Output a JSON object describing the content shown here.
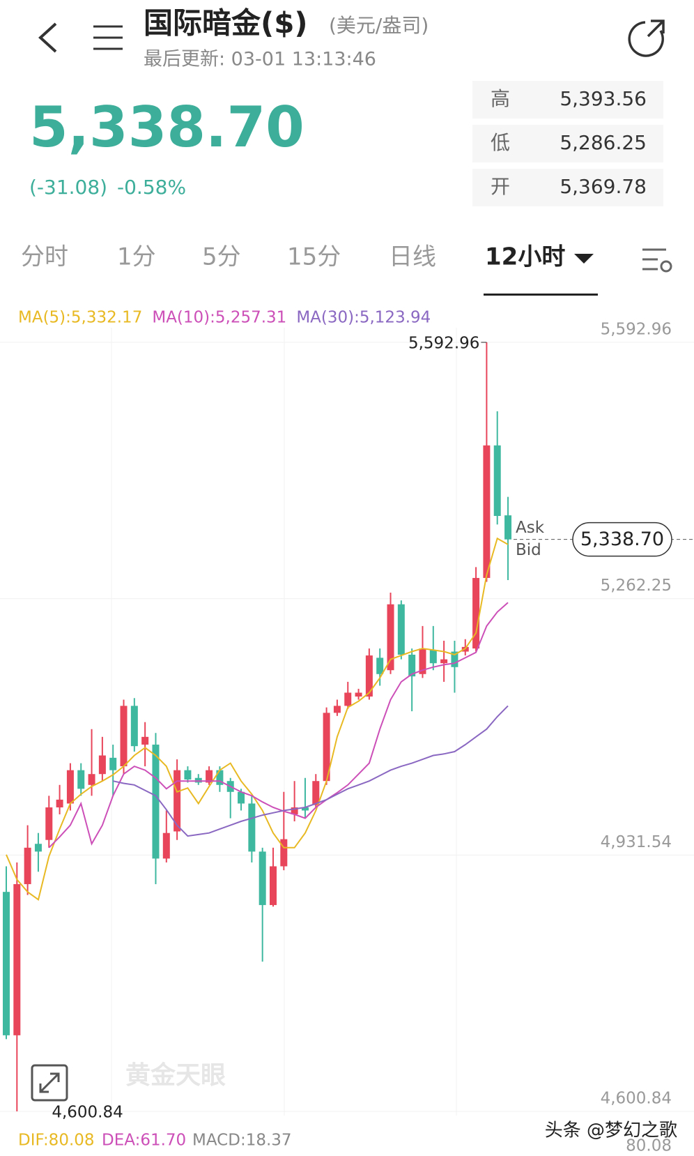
{
  "header": {
    "title": "国际暗金($)",
    "unit": "(美元/盎司)",
    "updated": "最后更新: 03-01 13:13:46"
  },
  "quote": {
    "price": "5,338.70",
    "change": "(-31.08)",
    "change_pct": "-0.58%",
    "stats": [
      {
        "label": "高",
        "value": "5,393.56"
      },
      {
        "label": "低",
        "value": "5,286.25"
      },
      {
        "label": "开",
        "value": "5,369.78"
      }
    ]
  },
  "tabs": [
    "分时",
    "1分",
    "5分",
    "15分",
    "日线",
    "12小时"
  ],
  "active_tab": 5,
  "chart_data": {
    "type": "candlestick",
    "ylim": [
      4600.84,
      5592.96
    ],
    "yticks": [
      {
        "value": 5592.96,
        "label": "5,592.96"
      },
      {
        "value": 5262.25,
        "label": "5,262.25"
      },
      {
        "value": 4931.54,
        "label": "4,931.54"
      },
      {
        "value": 4600.84,
        "label": "4,600.84"
      }
    ],
    "grid": true,
    "up_color": "#e8455a",
    "down_color": "#3fb8a0",
    "open": [
      4884,
      4699,
      4894,
      4946,
      4951,
      4993,
      4998,
      5041,
      5022,
      5036,
      5057,
      5046,
      5124,
      5074,
      5074,
      4927,
      4962,
      5041,
      5031,
      5025,
      5041,
      5027,
      5013,
      4998,
      4936,
      4867,
      4917,
      4984,
      4993,
      4996,
      5027,
      5115,
      5124,
      5136,
      5136,
      5186,
      5170,
      5255,
      5190,
      5165,
      5196,
      5179,
      5194,
      5194,
      5198,
      5289,
      5460,
      5369.78
    ],
    "high": [
      4917,
      4922,
      4970,
      4960,
      5008,
      5022,
      5050,
      5050,
      5094,
      5084,
      5074,
      5132,
      5134,
      5103,
      5089,
      4989,
      5055,
      5046,
      5036,
      5046,
      5046,
      5031,
      5017,
      5008,
      4941,
      4941,
      5013,
      5027,
      5031,
      5036,
      5122,
      5132,
      5155,
      5146,
      5198,
      5198,
      5270,
      5260,
      5198,
      5227,
      5227,
      5208,
      5208,
      5210,
      5303,
      5592.96,
      5504,
      5393.56
    ],
    "low": [
      4694,
      4600.84,
      4880,
      4910,
      4941,
      4984,
      4989,
      5008,
      5008,
      5027,
      5008,
      5036,
      5065,
      5046,
      4894,
      4922,
      4951,
      5025,
      5022,
      5022,
      5013,
      4979,
      4989,
      4922,
      4794,
      4865,
      4912,
      4975,
      4979,
      4993,
      5022,
      5111,
      5120,
      5132,
      5132,
      5150,
      5165,
      5184,
      5117,
      5160,
      5170,
      5155,
      5141,
      5189,
      5194,
      5284,
      5358,
      5286.25
    ],
    "close": [
      4699,
      4894,
      4941,
      4936,
      4993,
      5003,
      5041,
      5017,
      5036,
      5060,
      5041,
      5124,
      5072,
      5084,
      4927,
      4960,
      5041,
      5029,
      5025,
      5041,
      5022,
      5013,
      4998,
      4936,
      4867,
      4917,
      4952,
      4993,
      4989,
      5027,
      5115,
      5124,
      5141,
      5141,
      5189,
      5165,
      5255,
      5190,
      5162,
      5198,
      5179,
      5184,
      5174,
      5200,
      5289,
      5460,
      5369,
      5338.7
    ],
    "series": [
      {
        "name": "MA(5):5,332.17",
        "color": "#e8b923",
        "values": [
          4932,
          4900,
          4884,
          4874,
          4930,
          4965,
          4998,
          5010,
          5020,
          5027,
          5035,
          5046,
          5060,
          5070,
          5060,
          5046,
          5013,
          5018,
          4998,
          5020,
          5041,
          5050,
          5027,
          5010,
          4989,
          4960,
          4941,
          4941,
          4960,
          4989,
          5027,
          5084,
          5122,
          5130,
          5141,
          5160,
          5184,
          5189,
          5194,
          5198,
          5196,
          5194,
          5190,
          5198,
          5218,
          5293,
          5340,
          5332.17
        ]
      },
      {
        "name": "MA(10):5,257.31",
        "color": "#cc4fb8",
        "values": [
          null,
          null,
          null,
          null,
          4941,
          4955,
          4970,
          4998,
          4946,
          4970,
          5008,
          5036,
          5046,
          5041,
          5031,
          5017,
          5027,
          5027,
          5027,
          5027,
          5027,
          5020,
          5013,
          5008,
          5000,
          4993,
          4988,
          4984,
          4979,
          4993,
          5003,
          5012,
          5022,
          5036,
          5050,
          5094,
          5132,
          5155,
          5165,
          5170,
          5174,
          5177,
          5179,
          5186,
          5193,
          5227,
          5245,
          5257.31
        ]
      },
      {
        "name": "MA(30):5,123.94",
        "color": "#8a68c2",
        "values": [
          null,
          null,
          null,
          null,
          null,
          null,
          null,
          null,
          null,
          null,
          5027,
          5024,
          5022,
          5015,
          5008,
          4990,
          4970,
          4956,
          4958,
          4960,
          4965,
          4970,
          4975,
          4979,
          4983,
          4986,
          4989,
          4991,
          4993,
          4998,
          5003,
          5010,
          5017,
          5022,
          5027,
          5034,
          5041,
          5046,
          5050,
          5055,
          5060,
          5062,
          5065,
          5074,
          5084,
          5094,
          5110,
          5123.94
        ]
      }
    ],
    "annotations": {
      "max_label": "5,592.96",
      "min_label": "4,600.84",
      "last_price_label": "5,338.70",
      "ask": "Ask",
      "bid": "Bid"
    }
  },
  "macd": {
    "dif": "DIF:80.08",
    "dea": "DEA:61.70",
    "macd": "MACD:18.37",
    "axis_label": "80.08"
  },
  "watermark": "黄金天眼",
  "credit": "头条 @梦幻之歌"
}
